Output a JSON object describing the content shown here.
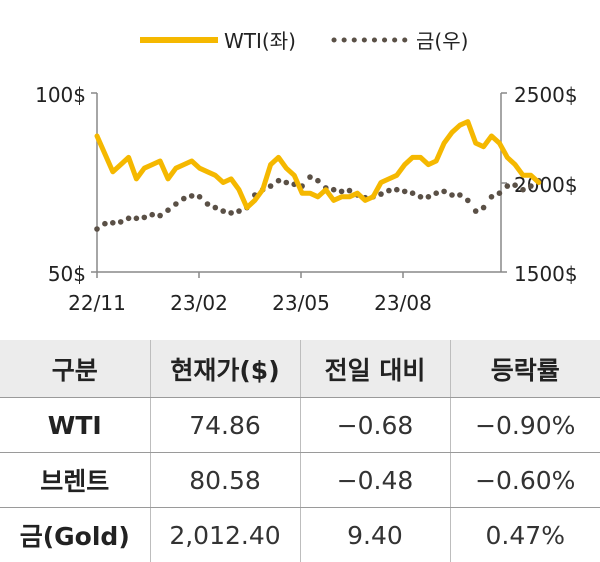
{
  "chart_data": {
    "type": "line",
    "x_ticks": [
      "22/11",
      "23/02",
      "23/05",
      "23/08"
    ],
    "y_left": {
      "ticks": [
        "100$",
        "50$"
      ],
      "range": [
        50,
        100
      ]
    },
    "y_right": {
      "ticks": [
        "2500$",
        "2000$",
        "1500$"
      ],
      "range": [
        1500,
        2500
      ]
    },
    "legend": {
      "placement": "top"
    },
    "series": [
      {
        "name": "WTI(좌)",
        "axis": "left",
        "color": "#F5B800",
        "style": "solid",
        "x": [
          "22/11/01",
          "22/11/08",
          "22/11/15",
          "22/11/22",
          "22/11/29",
          "22/12/06",
          "22/12/13",
          "22/12/20",
          "22/12/27",
          "23/01/03",
          "23/01/10",
          "23/01/17",
          "23/01/24",
          "23/01/31",
          "23/02/07",
          "23/02/14",
          "23/02/21",
          "23/02/28",
          "23/03/07",
          "23/03/14",
          "23/03/21",
          "23/03/28",
          "23/04/04",
          "23/04/11",
          "23/04/18",
          "23/04/25",
          "23/05/02",
          "23/05/09",
          "23/05/16",
          "23/05/23",
          "23/05/30",
          "23/06/06",
          "23/06/13",
          "23/06/20",
          "23/06/27",
          "23/07/04",
          "23/07/11",
          "23/07/18",
          "23/07/25",
          "23/08/01",
          "23/08/08",
          "23/08/15",
          "23/08/22",
          "23/08/29",
          "23/09/05",
          "23/09/12",
          "23/09/19",
          "23/09/26",
          "23/10/03",
          "23/10/10",
          "23/10/17",
          "23/10/24",
          "23/10/31",
          "23/11/07",
          "23/11/14",
          "23/11/21",
          "23/11/28"
        ],
        "values": [
          88,
          83,
          78,
          80,
          82,
          76,
          79,
          80,
          81,
          76,
          79,
          80,
          81,
          79,
          78,
          77,
          75,
          76,
          73,
          68,
          70,
          73,
          80,
          82,
          79,
          77,
          72,
          72,
          71,
          73,
          70,
          71,
          71,
          72,
          70,
          71,
          75,
          76,
          77,
          80,
          82,
          82,
          80,
          81,
          86,
          89,
          91,
          92,
          86,
          85,
          88,
          86,
          82,
          80,
          77,
          77,
          75
        ]
      },
      {
        "name": "금(우)",
        "axis": "right",
        "color": "#5A5046",
        "style": "dotted",
        "x": [
          "22/11/01",
          "22/11/08",
          "22/11/15",
          "22/11/22",
          "22/11/29",
          "22/12/06",
          "22/12/13",
          "22/12/20",
          "22/12/27",
          "23/01/03",
          "23/01/10",
          "23/01/17",
          "23/01/24",
          "23/01/31",
          "23/02/07",
          "23/02/14",
          "23/02/21",
          "23/02/28",
          "23/03/07",
          "23/03/14",
          "23/03/21",
          "23/03/28",
          "23/04/04",
          "23/04/11",
          "23/04/18",
          "23/04/25",
          "23/05/02",
          "23/05/09",
          "23/05/16",
          "23/05/23",
          "23/05/30",
          "23/06/06",
          "23/06/13",
          "23/06/20",
          "23/06/27",
          "23/07/04",
          "23/07/11",
          "23/07/18",
          "23/07/25",
          "23/08/01",
          "23/08/08",
          "23/08/15",
          "23/08/22",
          "23/08/29",
          "23/09/05",
          "23/09/12",
          "23/09/19",
          "23/09/26",
          "23/10/03",
          "23/10/10",
          "23/10/17",
          "23/10/24",
          "23/10/31",
          "23/11/07",
          "23/11/14",
          "23/11/21",
          "23/11/28"
        ],
        "values": [
          1740,
          1770,
          1775,
          1780,
          1800,
          1800,
          1805,
          1820,
          1815,
          1845,
          1880,
          1910,
          1925,
          1920,
          1880,
          1860,
          1840,
          1830,
          1840,
          1860,
          1930,
          1960,
          1980,
          2010,
          2000,
          1990,
          1980,
          2030,
          2010,
          1970,
          1960,
          1950,
          1955,
          1930,
          1915,
          1920,
          1935,
          1955,
          1960,
          1950,
          1940,
          1920,
          1920,
          1940,
          1950,
          1930,
          1930,
          1900,
          1840,
          1860,
          1920,
          1940,
          1980,
          1985,
          1960,
          1980,
          2010
        ]
      }
    ]
  },
  "table": {
    "headers": [
      "구분",
      "현재가($)",
      "전일 대비",
      "등락률"
    ],
    "rows": [
      {
        "name": "WTI",
        "price": "74.86",
        "change": "−0.68",
        "rate": "−0.90%"
      },
      {
        "name": "브렌트",
        "price": "80.58",
        "change": "−0.48",
        "rate": "−0.60%"
      },
      {
        "name": "금(Gold)",
        "price": "2,012.40",
        "change": "9.40",
        "rate": "0.47%"
      }
    ]
  }
}
